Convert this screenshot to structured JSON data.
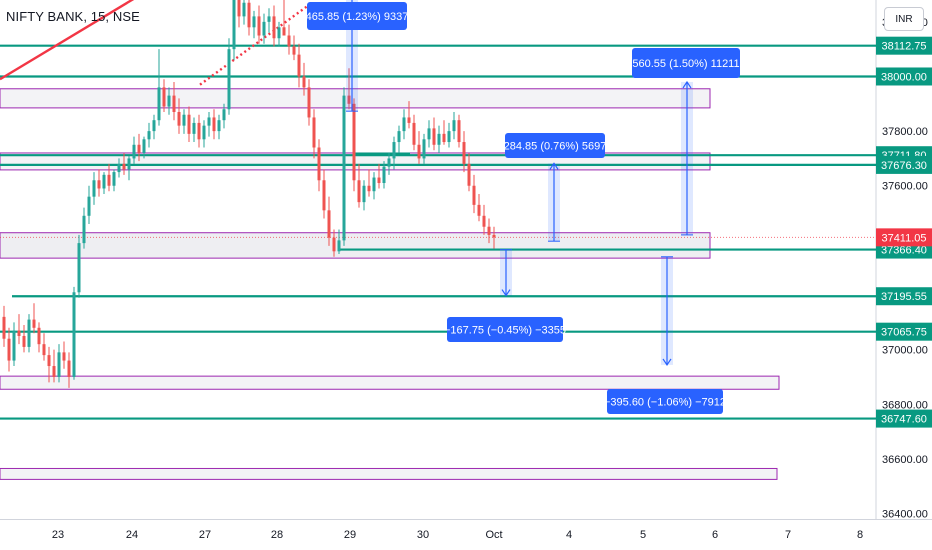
{
  "header": {
    "symbol_title": "NIFTY BANK, 15, NSE",
    "currency": "INR"
  },
  "colors": {
    "up": "#26a69a",
    "down": "#ef5350",
    "level_line": "#089981",
    "zone_border": "#9c27b0",
    "zone_fill": "#e9e9ee",
    "measure": "#2962ff",
    "trendline": "#f23645",
    "last_price": "#f23645"
  },
  "chart_data": {
    "type": "candlestick",
    "symbol": "NIFTY BANK",
    "timeframe": "15",
    "exchange": "NSE",
    "y_axis": {
      "range": [
        36380,
        38280
      ],
      "tick_labels": [
        "38200.00",
        "37800.00",
        "37600.00",
        "37000.00",
        "36800.00",
        "36600.00",
        "36400.00"
      ],
      "tick_values": [
        38200,
        37800,
        37600,
        37000,
        36800,
        36600,
        36400
      ]
    },
    "x_axis": {
      "tick_labels": [
        "23",
        "24",
        "27",
        "28",
        "29",
        "30",
        "Oct",
        "4",
        "5",
        "6",
        "7",
        "8"
      ]
    },
    "level_lines": [
      {
        "label": "38112.75",
        "value": 38112.75
      },
      {
        "label": "38000.00",
        "value": 38000.0
      },
      {
        "label": "37711.80",
        "value": 37711.8
      },
      {
        "label": "37676.30",
        "value": 37676.3
      },
      {
        "label": "37366.40",
        "value": 37366.4
      },
      {
        "label": "37195.55",
        "value": 37195.55
      },
      {
        "label": "37065.75",
        "value": 37065.75
      },
      {
        "label": "36747.60",
        "value": 36747.6
      }
    ],
    "last_price": {
      "label": "37411.05",
      "value": 37411.05
    },
    "zones": [
      {
        "top": 37955,
        "bottom": 37885
      },
      {
        "top": 37720,
        "bottom": 37658
      },
      {
        "top": 37428,
        "bottom": 37335
      },
      {
        "top": 36903,
        "bottom": 36855
      },
      {
        "top": 36565,
        "bottom": 36525
      }
    ],
    "measurements": [
      {
        "label": "465.85 (1.23%) 9337",
        "direction": "up",
        "from": 37873,
        "to": 38339
      },
      {
        "label": "560.55 (1.50%) 11211",
        "direction": "up",
        "from": 37420,
        "to": 37980
      },
      {
        "label": "284.85 (0.76%) 5697",
        "direction": "up",
        "from": 37397,
        "to": 37682
      },
      {
        "label": "−167.75 (−0.45%) −3355",
        "direction": "down",
        "from": 37366,
        "to": 37198
      },
      {
        "label": "−395.60 (−1.06%) −7912",
        "direction": "down",
        "from": 37340,
        "to": 36944
      }
    ],
    "candles": [
      {
        "o": 37120,
        "h": 37160,
        "l": 37010,
        "c": 37040
      },
      {
        "o": 37040,
        "h": 37080,
        "l": 36920,
        "c": 36960
      },
      {
        "o": 36960,
        "h": 37100,
        "l": 36940,
        "c": 37070
      },
      {
        "o": 37070,
        "h": 37130,
        "l": 37020,
        "c": 37050
      },
      {
        "o": 37050,
        "h": 37090,
        "l": 36990,
        "c": 37010
      },
      {
        "o": 37010,
        "h": 37130,
        "l": 36990,
        "c": 37110
      },
      {
        "o": 37110,
        "h": 37170,
        "l": 37060,
        "c": 37080
      },
      {
        "o": 37080,
        "h": 37100,
        "l": 36990,
        "c": 37020
      },
      {
        "o": 37020,
        "h": 37060,
        "l": 36960,
        "c": 36980
      },
      {
        "o": 36980,
        "h": 37010,
        "l": 36880,
        "c": 36940
      },
      {
        "o": 36940,
        "h": 37000,
        "l": 36880,
        "c": 36900
      },
      {
        "o": 36900,
        "h": 37020,
        "l": 36880,
        "c": 36990
      },
      {
        "o": 36990,
        "h": 37030,
        "l": 36930,
        "c": 36960
      },
      {
        "o": 36960,
        "h": 36990,
        "l": 36860,
        "c": 36900
      },
      {
        "o": 36900,
        "h": 37230,
        "l": 36890,
        "c": 37210
      },
      {
        "o": 37210,
        "h": 37420,
        "l": 37190,
        "c": 37390
      },
      {
        "o": 37390,
        "h": 37520,
        "l": 37370,
        "c": 37490
      },
      {
        "o": 37490,
        "h": 37600,
        "l": 37460,
        "c": 37560
      },
      {
        "o": 37560,
        "h": 37650,
        "l": 37530,
        "c": 37620
      },
      {
        "o": 37620,
        "h": 37660,
        "l": 37560,
        "c": 37590
      },
      {
        "o": 37590,
        "h": 37650,
        "l": 37570,
        "c": 37640
      },
      {
        "o": 37640,
        "h": 37680,
        "l": 37580,
        "c": 37600
      },
      {
        "o": 37600,
        "h": 37660,
        "l": 37580,
        "c": 37650
      },
      {
        "o": 37650,
        "h": 37700,
        "l": 37630,
        "c": 37680
      },
      {
        "o": 37680,
        "h": 37720,
        "l": 37640,
        "c": 37660
      },
      {
        "o": 37660,
        "h": 37710,
        "l": 37620,
        "c": 37700
      },
      {
        "o": 37700,
        "h": 37780,
        "l": 37680,
        "c": 37750
      },
      {
        "o": 37750,
        "h": 37790,
        "l": 37690,
        "c": 37720
      },
      {
        "o": 37720,
        "h": 37780,
        "l": 37700,
        "c": 37770
      },
      {
        "o": 37770,
        "h": 37830,
        "l": 37740,
        "c": 37800
      },
      {
        "o": 37800,
        "h": 37860,
        "l": 37770,
        "c": 37840
      },
      {
        "o": 37840,
        "h": 38100,
        "l": 37820,
        "c": 37960
      },
      {
        "o": 37960,
        "h": 37990,
        "l": 37870,
        "c": 37890
      },
      {
        "o": 37890,
        "h": 37960,
        "l": 37860,
        "c": 37930
      },
      {
        "o": 37930,
        "h": 37980,
        "l": 37840,
        "c": 37870
      },
      {
        "o": 37870,
        "h": 37920,
        "l": 37790,
        "c": 37820
      },
      {
        "o": 37820,
        "h": 37880,
        "l": 37790,
        "c": 37860
      },
      {
        "o": 37860,
        "h": 37890,
        "l": 37760,
        "c": 37790
      },
      {
        "o": 37790,
        "h": 37850,
        "l": 37760,
        "c": 37830
      },
      {
        "o": 37830,
        "h": 37860,
        "l": 37740,
        "c": 37770
      },
      {
        "o": 37770,
        "h": 37840,
        "l": 37740,
        "c": 37820
      },
      {
        "o": 37820,
        "h": 37870,
        "l": 37780,
        "c": 37850
      },
      {
        "o": 37850,
        "h": 37880,
        "l": 37770,
        "c": 37800
      },
      {
        "o": 37800,
        "h": 37860,
        "l": 37770,
        "c": 37840
      },
      {
        "o": 37840,
        "h": 37900,
        "l": 37810,
        "c": 37880
      },
      {
        "o": 37880,
        "h": 38140,
        "l": 37860,
        "c": 38100
      },
      {
        "o": 38100,
        "h": 38320,
        "l": 38060,
        "c": 38280
      },
      {
        "o": 38280,
        "h": 38300,
        "l": 38180,
        "c": 38220
      },
      {
        "o": 38220,
        "h": 38290,
        "l": 38190,
        "c": 38270
      },
      {
        "o": 38270,
        "h": 38290,
        "l": 38150,
        "c": 38180
      },
      {
        "o": 38180,
        "h": 38240,
        "l": 38140,
        "c": 38220
      },
      {
        "o": 38220,
        "h": 38260,
        "l": 38120,
        "c": 38150
      },
      {
        "o": 38150,
        "h": 38230,
        "l": 38120,
        "c": 38200
      },
      {
        "o": 38200,
        "h": 38250,
        "l": 38160,
        "c": 38220
      },
      {
        "o": 38220,
        "h": 38260,
        "l": 38110,
        "c": 38140
      },
      {
        "o": 38140,
        "h": 38200,
        "l": 38110,
        "c": 38180
      },
      {
        "o": 38180,
        "h": 38310,
        "l": 38150,
        "c": 38150
      },
      {
        "o": 38150,
        "h": 38190,
        "l": 38080,
        "c": 38110
      },
      {
        "o": 38110,
        "h": 38150,
        "l": 38060,
        "c": 38080
      },
      {
        "o": 38080,
        "h": 38120,
        "l": 37960,
        "c": 38000
      },
      {
        "o": 38000,
        "h": 38050,
        "l": 37930,
        "c": 37960
      },
      {
        "o": 37960,
        "h": 37990,
        "l": 37820,
        "c": 37850
      },
      {
        "o": 37850,
        "h": 37880,
        "l": 37700,
        "c": 37740
      },
      {
        "o": 37740,
        "h": 37770,
        "l": 37580,
        "c": 37620
      },
      {
        "o": 37620,
        "h": 37660,
        "l": 37480,
        "c": 37510
      },
      {
        "o": 37510,
        "h": 37560,
        "l": 37380,
        "c": 37410
      },
      {
        "o": 37410,
        "h": 37440,
        "l": 37340,
        "c": 37360
      },
      {
        "o": 37360,
        "h": 37440,
        "l": 37350,
        "c": 37400
      },
      {
        "o": 37400,
        "h": 37960,
        "l": 37380,
        "c": 37930
      },
      {
        "o": 37930,
        "h": 38030,
        "l": 37880,
        "c": 37900
      },
      {
        "o": 37900,
        "h": 37920,
        "l": 37580,
        "c": 37620
      },
      {
        "o": 37620,
        "h": 37680,
        "l": 37520,
        "c": 37540
      },
      {
        "o": 37540,
        "h": 37620,
        "l": 37510,
        "c": 37600
      },
      {
        "o": 37600,
        "h": 37660,
        "l": 37560,
        "c": 37580
      },
      {
        "o": 37580,
        "h": 37650,
        "l": 37550,
        "c": 37630
      },
      {
        "o": 37630,
        "h": 37680,
        "l": 37590,
        "c": 37610
      },
      {
        "o": 37610,
        "h": 37690,
        "l": 37590,
        "c": 37670
      },
      {
        "o": 37670,
        "h": 37720,
        "l": 37640,
        "c": 37700
      },
      {
        "o": 37700,
        "h": 37780,
        "l": 37660,
        "c": 37760
      },
      {
        "o": 37760,
        "h": 37820,
        "l": 37720,
        "c": 37800
      },
      {
        "o": 37800,
        "h": 37880,
        "l": 37770,
        "c": 37850
      },
      {
        "o": 37850,
        "h": 37910,
        "l": 37810,
        "c": 37830
      },
      {
        "o": 37830,
        "h": 37860,
        "l": 37730,
        "c": 37750
      },
      {
        "o": 37750,
        "h": 37800,
        "l": 37680,
        "c": 37700
      },
      {
        "o": 37700,
        "h": 37790,
        "l": 37680,
        "c": 37770
      },
      {
        "o": 37770,
        "h": 37840,
        "l": 37740,
        "c": 37810
      },
      {
        "o": 37810,
        "h": 37850,
        "l": 37730,
        "c": 37750
      },
      {
        "o": 37750,
        "h": 37820,
        "l": 37720,
        "c": 37790
      },
      {
        "o": 37790,
        "h": 37840,
        "l": 37750,
        "c": 37760
      },
      {
        "o": 37760,
        "h": 37830,
        "l": 37740,
        "c": 37800
      },
      {
        "o": 37800,
        "h": 37870,
        "l": 37770,
        "c": 37840
      },
      {
        "o": 37840,
        "h": 37860,
        "l": 37740,
        "c": 37760
      },
      {
        "o": 37760,
        "h": 37800,
        "l": 37650,
        "c": 37680
      },
      {
        "o": 37680,
        "h": 37720,
        "l": 37580,
        "c": 37600
      },
      {
        "o": 37600,
        "h": 37640,
        "l": 37500,
        "c": 37530
      },
      {
        "o": 37530,
        "h": 37570,
        "l": 37470,
        "c": 37490
      },
      {
        "o": 37490,
        "h": 37530,
        "l": 37420,
        "c": 37450
      },
      {
        "o": 37450,
        "h": 37480,
        "l": 37390,
        "c": 37420
      },
      {
        "o": 37420,
        "h": 37450,
        "l": 37370,
        "c": 37411
      }
    ]
  }
}
